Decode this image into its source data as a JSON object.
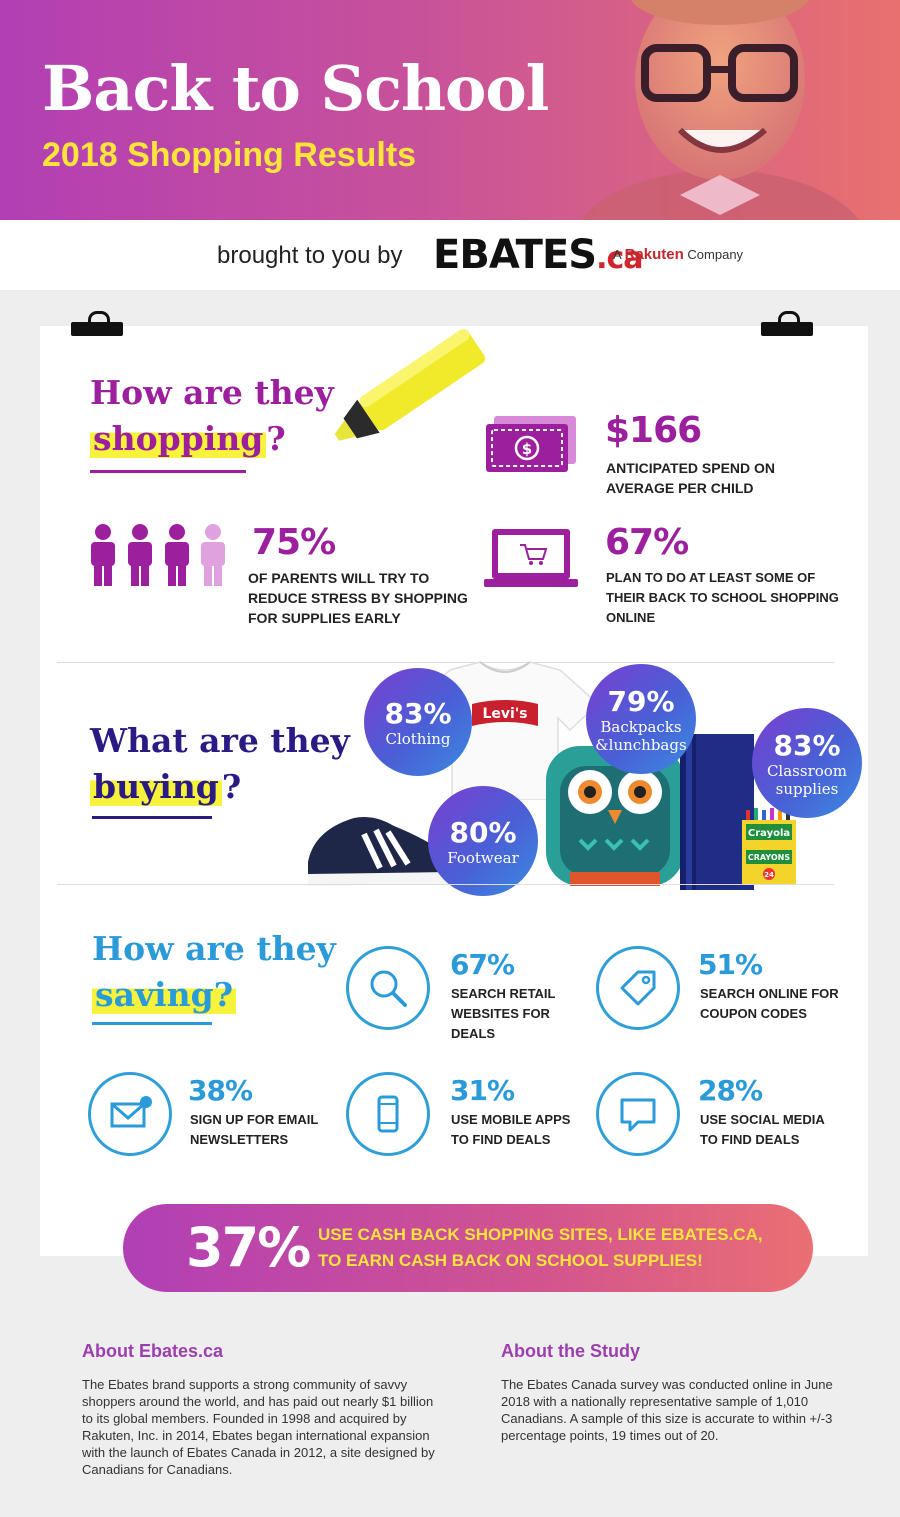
{
  "hero": {
    "title": "Back to School",
    "subtitle": "2018 Shopping Results"
  },
  "brand": {
    "brought": "brought to you by",
    "logo": "EBATES",
    "logo_ca": ".ca",
    "rakuten_prefix": "A",
    "rakuten": "Rakuten",
    "rakuten_suffix": "Company"
  },
  "shopping": {
    "heading_1": "How are they",
    "heading_2": "shopping",
    "heading_q": "?",
    "spend": {
      "value": "$166",
      "text": "ANTICIPATED SPEND ON AVERAGE PER CHILD"
    },
    "early": {
      "value": "75%",
      "text": "OF PARENTS WILL TRY TO REDUCE STRESS BY SHOPPING FOR SUPPLIES EARLY"
    },
    "online": {
      "value": "67%",
      "text": "PLAN TO DO AT LEAST SOME OF THEIR BACK TO SCHOOL SHOPPING ONLINE"
    }
  },
  "buying": {
    "heading_1": "What are they",
    "heading_2": "buying",
    "heading_q": "?",
    "items": [
      {
        "pct": "83%",
        "label": "Clothing"
      },
      {
        "pct": "79%",
        "label": "Backpacks &lunchbags"
      },
      {
        "pct": "83%",
        "label": "Classroom supplies"
      },
      {
        "pct": "80%",
        "label": "Footwear"
      }
    ],
    "levis": "Levi's",
    "crayola": "Crayola",
    "crayons": "CRAYONS",
    "crayon_count": "24"
  },
  "saving": {
    "heading_1": "How are they",
    "heading_2": "saving?",
    "items": [
      {
        "pct": "67%",
        "text": "SEARCH RETAIL WEBSITES FOR DEALS"
      },
      {
        "pct": "51%",
        "text": "SEARCH ONLINE FOR COUPON CODES"
      },
      {
        "pct": "38%",
        "text": "SIGN UP FOR EMAIL NEWSLETTERS"
      },
      {
        "pct": "31%",
        "text": "USE MOBILE APPS TO FIND DEALS"
      },
      {
        "pct": "28%",
        "text": "USE SOCIAL MEDIA TO FIND DEALS"
      }
    ]
  },
  "cta": {
    "pct": "37%",
    "line1": "USE CASH BACK SHOPPING SITES, LIKE EBATES.CA,",
    "line2": "TO EARN CASH BACK ON SCHOOL SUPPLIES!"
  },
  "footer": {
    "about_title": "About Ebates.ca",
    "about_text": "The Ebates brand supports a strong community of savvy shoppers around the world, and has paid out nearly $1 billion to its global members. Founded in 1998 and acquired by Rakuten, Inc. in 2014, Ebates began international expansion with the launch of Ebates Canada in 2012, a site designed by Canadians for Canadians.",
    "study_title": "About the Study",
    "study_text": "The Ebates Canada survey was conducted online in June 2018 with a nationally representative sample of 1,010 Canadians. A sample of this size is accurate to within +/-3 percentage points, 19 times out of 20."
  },
  "colors": {
    "purple": "#9c1f9e",
    "navy": "#2a1a84",
    "blue": "#2a9ad8",
    "yellow": "#f7f23b"
  }
}
